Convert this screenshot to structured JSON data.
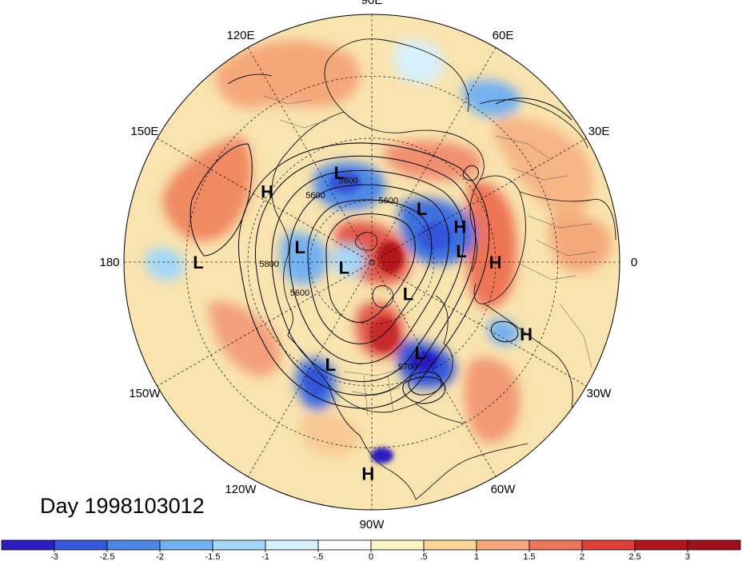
{
  "date_label": "Day 1998103012",
  "longitude_labels": [
    {
      "text": "90E",
      "lon": 90
    },
    {
      "text": "60E",
      "lon": 60
    },
    {
      "text": "30E",
      "lon": 30
    },
    {
      "text": "0",
      "lon": 0
    },
    {
      "text": "30W",
      "lon": -30
    },
    {
      "text": "60W",
      "lon": -60
    },
    {
      "text": "90W",
      "lon": -90
    },
    {
      "text": "120W",
      "lon": -120
    },
    {
      "text": "150W",
      "lon": -150
    },
    {
      "text": "180",
      "lon": 180
    },
    {
      "text": "150E",
      "lon": 150
    },
    {
      "text": "120E",
      "lon": 120
    }
  ],
  "pressure_centers": [
    {
      "type": "L",
      "lat": 57,
      "lon": 47
    },
    {
      "type": "H",
      "lat": 48,
      "lon": 22
    },
    {
      "type": "H",
      "lat": 37,
      "lon": 0
    },
    {
      "type": "L",
      "lat": 48,
      "lon": 110
    },
    {
      "type": "H",
      "lat": 36,
      "lon": 146
    },
    {
      "type": "L",
      "lat": 50,
      "lon": 7
    },
    {
      "type": "L",
      "lat": 20,
      "lon": 180
    },
    {
      "type": "L",
      "lat": 57,
      "lon": 168
    },
    {
      "type": "L",
      "lat": 77,
      "lon": 191
    },
    {
      "type": "L",
      "lat": 68,
      "lon": -41
    },
    {
      "type": "L",
      "lat": 45,
      "lon": -62
    },
    {
      "type": "H",
      "lat": 21,
      "lon": -25
    },
    {
      "type": "L",
      "lat": 42,
      "lon": -112
    },
    {
      "type": "H",
      "lat": 9,
      "lon": -91
    }
  ],
  "contour_labels": [
    {
      "text": "5800",
      "lat": 52,
      "lon": 106
    },
    {
      "text": "5600",
      "lat": 51,
      "lon": 130
    },
    {
      "text": "5600",
      "lat": 61,
      "lon": 75
    },
    {
      "text": "5800",
      "lat": 45,
      "lon": 181
    },
    {
      "text": "5600",
      "lat": 55,
      "lon": -157
    },
    {
      "text": "5700",
      "lat": 42,
      "lon": -71
    }
  ],
  "colorbar": {
    "tick_labels": [
      "-3",
      "-2.5",
      "-2",
      "-1.5",
      "-1",
      "-.5",
      "0",
      ".5",
      "1",
      "1.5",
      "2",
      "2.5",
      "3"
    ],
    "colors": [
      "#2c1fbf",
      "#3557d9",
      "#4d87e6",
      "#73b1f0",
      "#a3d8f7",
      "#d7f0fb",
      "#ffffff",
      "#fbf3c4",
      "#f9d599",
      "#f5a77a",
      "#ed7456",
      "#e03c3a",
      "#b4151d"
    ]
  }
}
